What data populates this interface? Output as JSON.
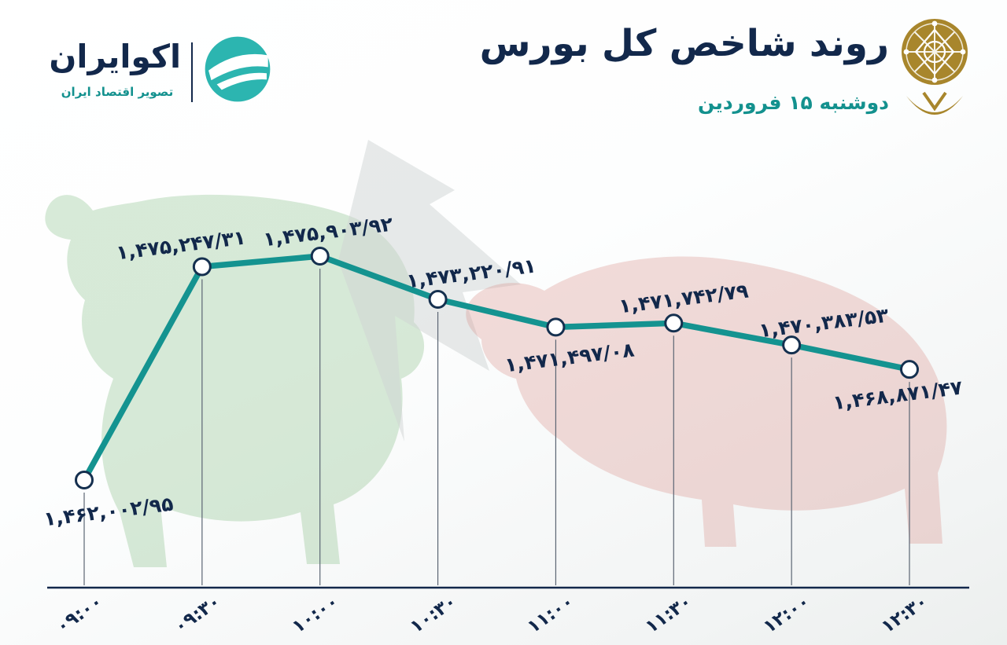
{
  "header": {
    "brand": {
      "name": "اکوایران",
      "tagline": "تصویر اقتصاد ایران"
    },
    "title": "روند شاخص کل بورس",
    "subtitle": "دوشنبه ۱۵ فروردین"
  },
  "colors": {
    "navy": "#12284b",
    "teal": "#13918e",
    "logo_teal": "#2cb5b0",
    "gold": "#a8862c",
    "bull_green": "#86bf86",
    "bear_red": "#d88c85",
    "marker_fill": "#ffffff",
    "marker_stroke": "#15304f"
  },
  "chart_data": {
    "type": "line",
    "title": "روند شاخص کل بورس",
    "subtitle": "دوشنبه ۱۵ فروردین",
    "x": [
      "09:00",
      "09:30",
      "10:00",
      "10:30",
      "11:00",
      "11:30",
      "12:00",
      "12:30"
    ],
    "x_labels": [
      "۰۹:۰۰",
      "۰۹:۳۰",
      "۱۰:۰۰",
      "۱۰:۳۰",
      "۱۱:۰۰",
      "۱۱:۳۰",
      "۱۲:۰۰",
      "۱۲:۳۰"
    ],
    "values": [
      1462002.95,
      1475247.31,
      1475903.92,
      1473220.91,
      1471497.08,
      1471742.79,
      1470383.53,
      1468871.47
    ],
    "value_labels": [
      "۱,۴۶۲,۰۰۲/۹۵",
      "۱,۴۷۵,۲۴۷/۳۱",
      "۱,۴۷۵,۹۰۳/۹۲",
      "۱,۴۷۳,۲۲۰/۹۱",
      "۱,۴۷۱,۴۹۷/۰۸",
      "۱,۴۷۱,۷۴۲/۷۹",
      "۱,۴۷۰,۳۸۳/۵۳",
      "۱,۴۶۸,۸۷۱/۴۷"
    ],
    "label_side": [
      "below",
      "above",
      "above",
      "above",
      "below",
      "above",
      "above",
      "below"
    ],
    "ylim": [
      1461800,
      1476300
    ],
    "xlabel": "",
    "ylabel": "",
    "grid": false,
    "legend": "none",
    "line_color": "#149390"
  }
}
